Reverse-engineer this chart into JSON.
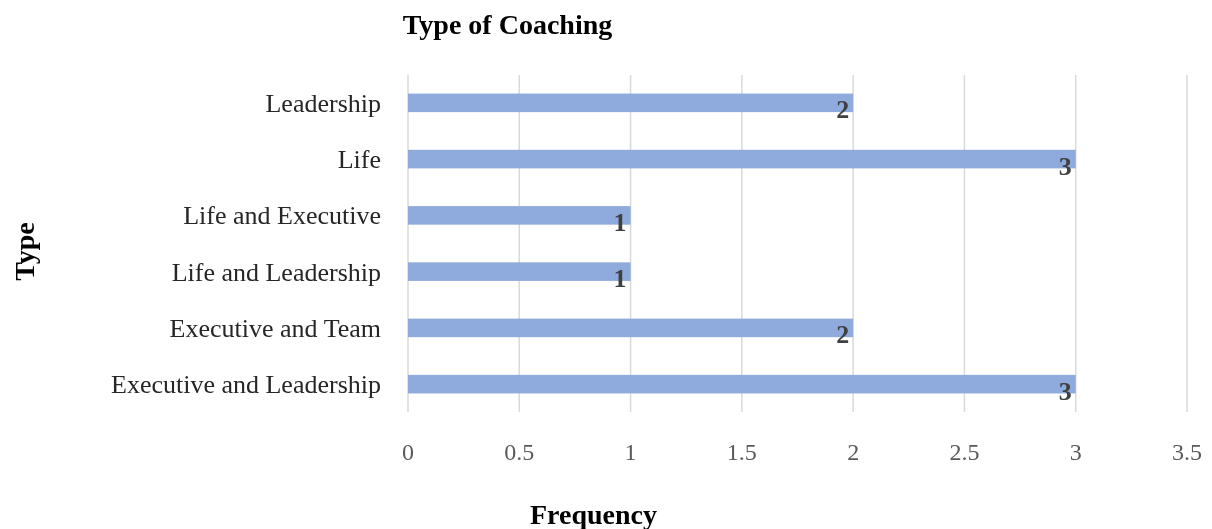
{
  "chart_data": {
    "type": "bar",
    "orientation": "horizontal",
    "title": "Type of Coaching",
    "xlabel": "Frequency",
    "ylabel": "Type",
    "categories": [
      "Leadership",
      "Life",
      "Life and Executive",
      "Life and Leadership",
      "Executive and Team",
      "Executive and Leadership"
    ],
    "values": [
      2,
      3,
      1,
      1,
      2,
      3
    ],
    "color": "#8faadc",
    "xlim": [
      0,
      3.5
    ],
    "xticks": [
      0,
      0.5,
      1,
      1.5,
      2,
      2.5,
      3,
      3.5
    ],
    "grid": "x",
    "data_labels": true
  }
}
